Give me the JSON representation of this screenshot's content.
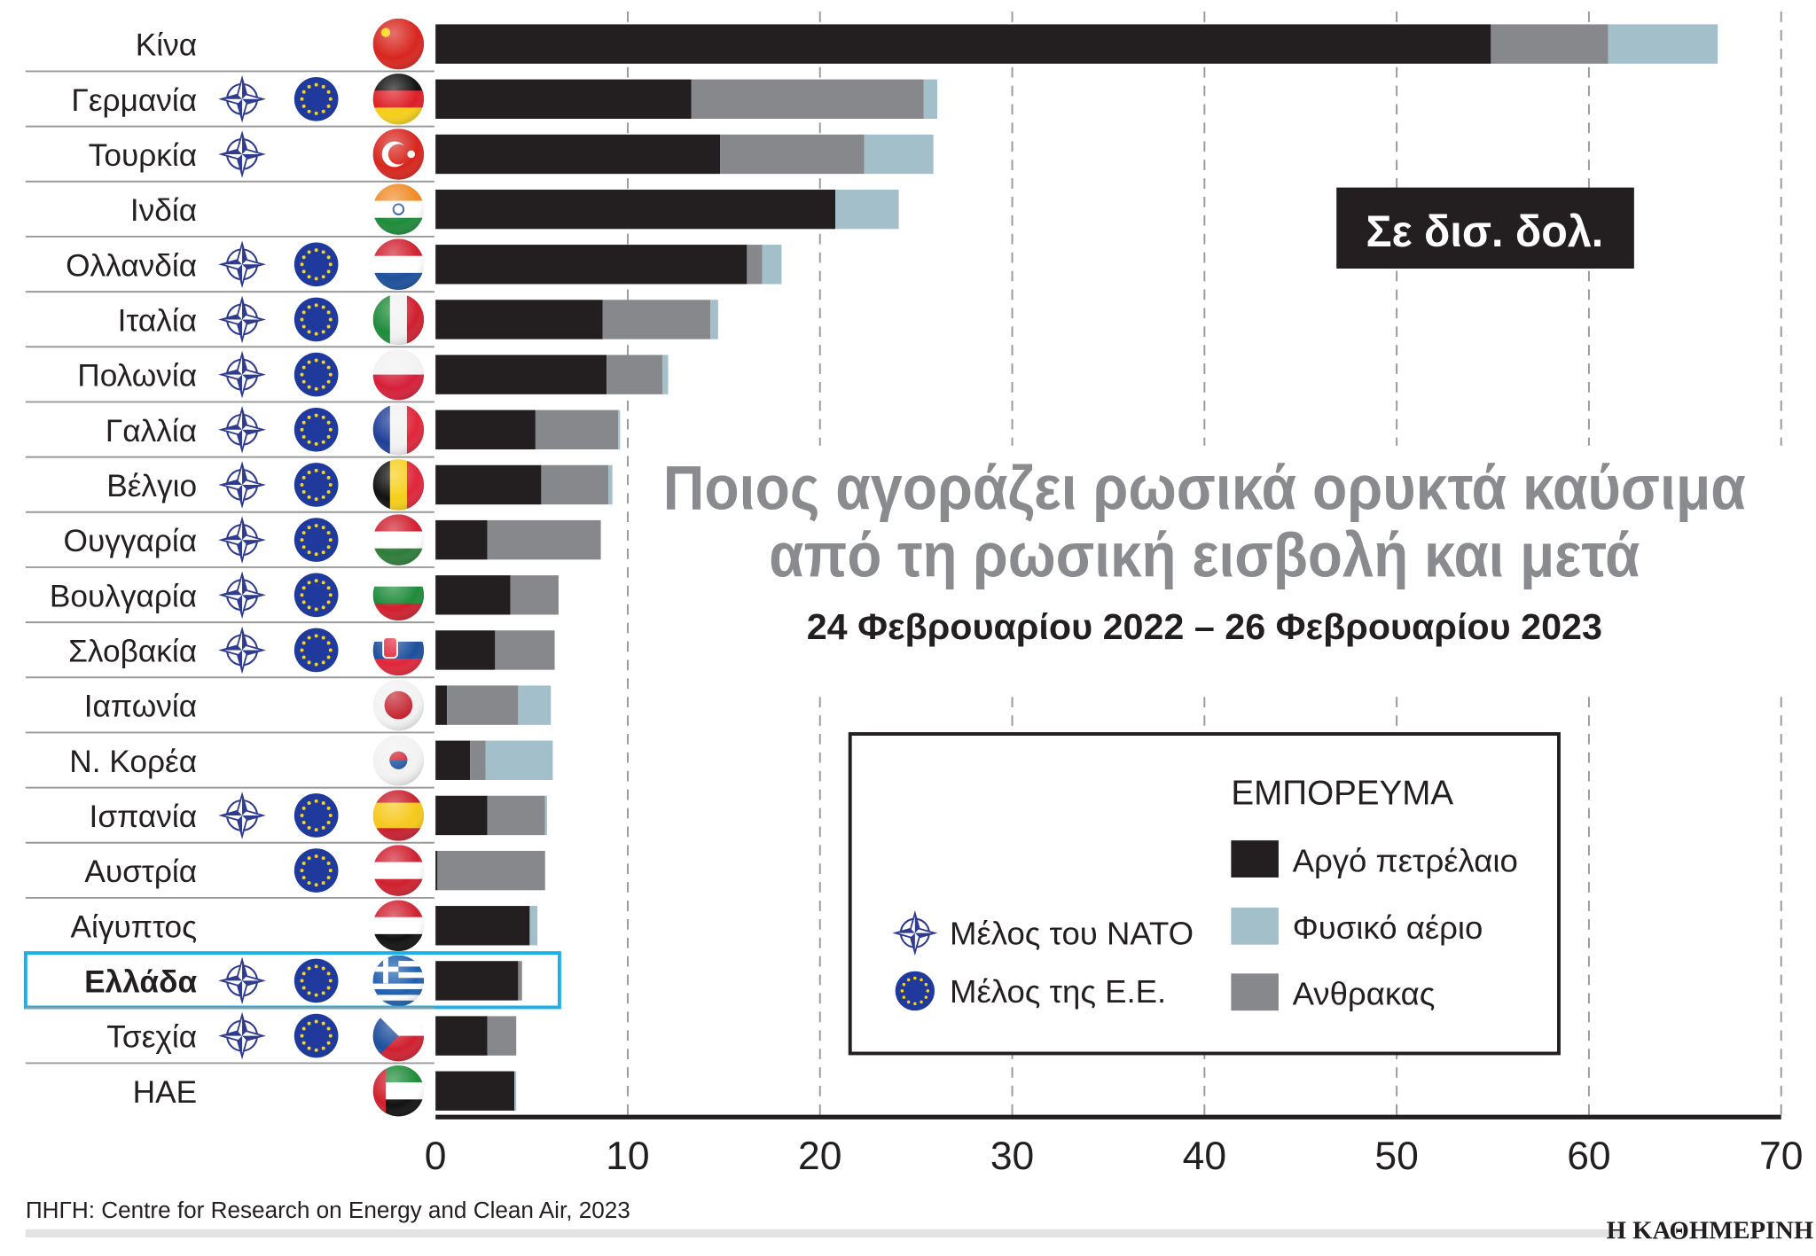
{
  "chart_data": {
    "type": "bar",
    "orientation": "horizontal",
    "stacked": true,
    "title": "Ποιος αγοράζει ρωσικά ορυκτά καύσιμα από τη ρωσική εισβολή και μετά",
    "title_lines": [
      "Ποιος αγοράζει ρωσικά ορυκτά καύσιμα",
      "από τη ρωσική εισβολή και μετά"
    ],
    "subtitle": "24 Φεβρουαρίου 2022 – 26 Φεβρουαρίου 2023",
    "unit_label": "Σε δισ. δολ.",
    "xlim": [
      0,
      70
    ],
    "xticks": [
      "0",
      "10",
      "20",
      "30",
      "40",
      "50",
      "60",
      "70"
    ],
    "grid": "vertical dashed",
    "legend": {
      "title": "ΕΜΠΟΡΕΥΜΑ",
      "placement": "bottom-right",
      "items": [
        "Αργό πετρέλαιο",
        "Φυσικό αέριο",
        "Ανθρακας"
      ],
      "membership": [
        "Μέλος του ΝΑΤΟ",
        "Μέλος της Ε.Ε."
      ]
    },
    "colors": {
      "oil": "#231f20",
      "gas": "#a3bfca",
      "coal": "#87888b",
      "highlight": "#1ab0e8",
      "title": "#8a8b8e"
    },
    "categories": [
      "Κίνα",
      "Γερμανία",
      "Τουρκία",
      "Ινδία",
      "Ολλανδία",
      "Ιταλία",
      "Πολωνία",
      "Γαλλία",
      "Βέλγιο",
      "Ουγγαρία",
      "Βουλγαρία",
      "Σλοβακία",
      "Ιαπωνία",
      "Ν. Κορέα",
      "Ισπανία",
      "Αυστρία",
      "Αίγυπτος",
      "Ελλάδα",
      "Τσεχία",
      "ΗΑΕ"
    ],
    "highlighted": "Ελλάδα",
    "nato": [
      false,
      true,
      true,
      false,
      true,
      true,
      true,
      true,
      true,
      true,
      true,
      true,
      false,
      false,
      true,
      false,
      false,
      true,
      true,
      false
    ],
    "eu": [
      false,
      true,
      false,
      false,
      true,
      true,
      true,
      true,
      true,
      true,
      true,
      true,
      false,
      false,
      true,
      true,
      false,
      true,
      true,
      false
    ],
    "flags": [
      "china-flag-icon",
      "germany-flag-icon",
      "turkey-flag-icon",
      "india-flag-icon",
      "netherlands-flag-icon",
      "italy-flag-icon",
      "poland-flag-icon",
      "france-flag-icon",
      "belgium-flag-icon",
      "hungary-flag-icon",
      "bulgaria-flag-icon",
      "slovakia-flag-icon",
      "japan-flag-icon",
      "south-korea-flag-icon",
      "spain-flag-icon",
      "austria-flag-icon",
      "egypt-flag-icon",
      "greece-flag-icon",
      "czechia-flag-icon",
      "uae-flag-icon"
    ],
    "series": [
      {
        "name": "Αργό πετρέλαιο",
        "values": [
          54.9,
          13.3,
          14.8,
          20.8,
          16.2,
          8.7,
          8.9,
          5.2,
          5.5,
          2.7,
          3.9,
          3.1,
          0.6,
          1.8,
          2.7,
          0.1,
          4.9,
          4.3,
          2.7,
          4.1
        ]
      },
      {
        "name": "Ανθρακας",
        "values": [
          6.1,
          12.1,
          7.5,
          0,
          0.8,
          5.6,
          2.9,
          4.3,
          3.5,
          5.9,
          2.5,
          3.1,
          3.7,
          0.8,
          3.0,
          5.6,
          0,
          0.2,
          1.5,
          0
        ]
      },
      {
        "name": "Φυσικό αέριο",
        "values": [
          5.7,
          0.7,
          3.6,
          3.3,
          1.0,
          0.4,
          0.3,
          0.1,
          0.2,
          0,
          0,
          0,
          1.7,
          3.5,
          0.1,
          0,
          0.4,
          0,
          0,
          0.1
        ]
      }
    ]
  },
  "footer": {
    "source": "ΠΗΓΗ: Centre for Research on Energy and Clean Air, 2023",
    "logo": "Η ΚΑΘΗΜΕΡΙΝΗ"
  }
}
